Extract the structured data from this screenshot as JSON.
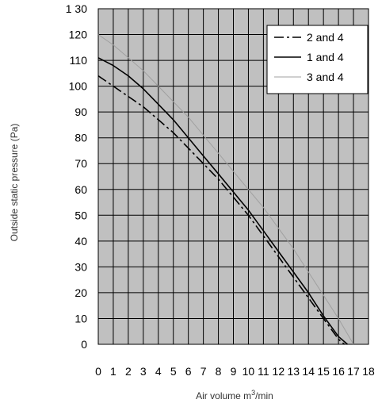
{
  "chart_data": {
    "type": "line",
    "title": "",
    "xlabel": "Air volume m",
    "xlabel_sup": "3",
    "xlabel_tail": "/min",
    "ylabel": "Outside static pressure (Pa)",
    "xlim": [
      0,
      18
    ],
    "ylim": [
      0,
      130
    ],
    "xticks": [
      0,
      1,
      2,
      3,
      4,
      5,
      6,
      7,
      8,
      9,
      10,
      11,
      12,
      13,
      14,
      15,
      16,
      17,
      18
    ],
    "yticks": [
      0,
      10,
      20,
      30,
      40,
      50,
      60,
      70,
      80,
      90,
      100,
      110,
      120,
      130
    ],
    "ytick_labels": [
      "0",
      "10",
      "20",
      "30",
      "40",
      "50",
      "60",
      "70",
      "80",
      "90",
      "100",
      "110",
      "120",
      "1 30"
    ],
    "grid": true,
    "legend_position": "top-right",
    "series": [
      {
        "name": "2 and 4",
        "style": "dash-dot",
        "color": "#000000",
        "x": [
          0,
          1,
          2,
          3,
          4,
          5,
          6,
          7,
          8,
          9,
          10,
          11,
          12,
          13,
          14,
          15,
          16,
          16.4
        ],
        "y": [
          104,
          100,
          96,
          92,
          87,
          82,
          76,
          70,
          64,
          57,
          50,
          42,
          34,
          26,
          18,
          10,
          2,
          0
        ]
      },
      {
        "name": "1 and 4",
        "style": "solid",
        "color": "#000000",
        "x": [
          0,
          1,
          2,
          3,
          4,
          5,
          6,
          7,
          8,
          9,
          10,
          11,
          12,
          13,
          14,
          15,
          16,
          16.6
        ],
        "y": [
          111,
          108,
          104,
          99,
          93,
          87,
          80,
          73,
          66,
          59,
          52,
          44,
          36,
          28,
          20,
          11,
          3,
          0
        ]
      },
      {
        "name": "3 and 4",
        "style": "solid",
        "color": "#a0a0a0",
        "x": [
          0,
          1,
          2,
          3,
          4,
          5,
          6,
          7,
          8,
          9,
          10,
          11,
          12,
          13,
          14,
          15,
          16,
          17
        ],
        "y": [
          120,
          116,
          111,
          106,
          100,
          94,
          88,
          81,
          74,
          67,
          60,
          53,
          45,
          37,
          28,
          19,
          10,
          0
        ]
      }
    ]
  }
}
